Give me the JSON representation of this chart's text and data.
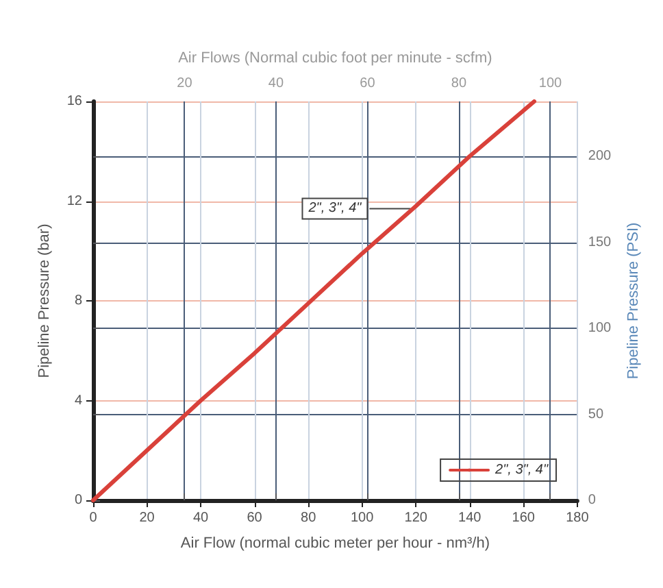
{
  "chart_data": {
    "type": "line",
    "xlabel": "Air Flow (normal cubic meter per hour - nm³/h)",
    "x2label": "Air Flows (Normal cubic foot per minute - scfm)",
    "ylabel": "Pipeline Pressure (bar)",
    "y2label": "Pipeline Pressure (PSI)",
    "x": [
      0,
      20,
      40,
      60,
      80,
      100,
      120,
      140,
      164
    ],
    "series": [
      {
        "name": "2\", 3\", 4\"",
        "color": "#d9413a",
        "values": [
          0,
          2.0,
          4.0,
          5.9,
          7.9,
          9.9,
          11.8,
          13.8,
          16
        ]
      }
    ],
    "xlim": [
      0,
      180
    ],
    "xticks": [
      0,
      20,
      40,
      60,
      80,
      100,
      120,
      140,
      160,
      180
    ],
    "x2lim": [
      0,
      105.9
    ],
    "x2ticks": [
      20,
      40,
      60,
      80,
      100
    ],
    "ylim": [
      0,
      16
    ],
    "yticks": [
      0,
      4,
      8,
      12,
      16
    ],
    "y2lim": [
      0,
      232
    ],
    "y2ticks": [
      0,
      50,
      100,
      150,
      200
    ],
    "annotations": [
      {
        "text": "2\", 3\", 4\"",
        "x": 118,
        "y": 11.7
      }
    ],
    "grid": true,
    "legend": "bottom right",
    "marker": "none",
    "line_style": "solid"
  }
}
